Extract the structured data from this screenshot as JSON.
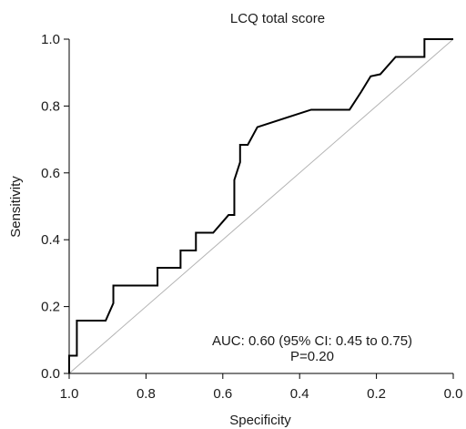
{
  "chart_data": {
    "type": "line",
    "title": "LCQ total score",
    "xlabel": "Specificity",
    "ylabel": "Sensitivity",
    "xlim": [
      1.0,
      0.0
    ],
    "ylim": [
      0.0,
      1.0
    ],
    "x_reversed": true,
    "xticks": [
      1.0,
      0.8,
      0.6,
      0.4,
      0.2,
      0.0
    ],
    "xtick_labels": [
      "1.0",
      "0.8",
      "0.6",
      "0.4",
      "0.2",
      "0.0"
    ],
    "yticks": [
      0.0,
      0.2,
      0.4,
      0.6,
      0.8,
      1.0
    ],
    "ytick_labels": [
      "0.0",
      "0.2",
      "0.4",
      "0.6",
      "0.8",
      "1.0"
    ],
    "grid": false,
    "annotations": [
      "AUC: 0.60 (95% CI: 0.45 to 0.75)",
      "P=0.20"
    ],
    "series": [
      {
        "color": "#000000",
        "x": [
          1.0,
          1.0,
          0.98,
          0.98,
          0.905,
          0.885,
          0.885,
          0.77,
          0.77,
          0.71,
          0.71,
          0.67,
          0.67,
          0.625,
          0.585,
          0.585,
          0.57,
          0.57,
          0.555,
          0.555,
          0.535,
          0.535,
          0.51,
          0.37,
          0.27,
          0.24,
          0.215,
          0.215,
          0.19,
          0.19,
          0.15,
          0.075,
          0.075,
          0.0
        ],
        "y": [
          0.0,
          0.053,
          0.053,
          0.158,
          0.158,
          0.21,
          0.263,
          0.263,
          0.316,
          0.316,
          0.368,
          0.368,
          0.421,
          0.421,
          0.474,
          0.474,
          0.474,
          0.579,
          0.632,
          0.684,
          0.684,
          0.684,
          0.737,
          0.789,
          0.789,
          0.842,
          0.889,
          0.889,
          0.895,
          0.895,
          0.947,
          0.947,
          1.0,
          1.0
        ]
      },
      {
        "color": "#b3b3b3",
        "x": [
          1.0,
          0.0
        ],
        "y": [
          0.0,
          1.0
        ]
      }
    ]
  }
}
